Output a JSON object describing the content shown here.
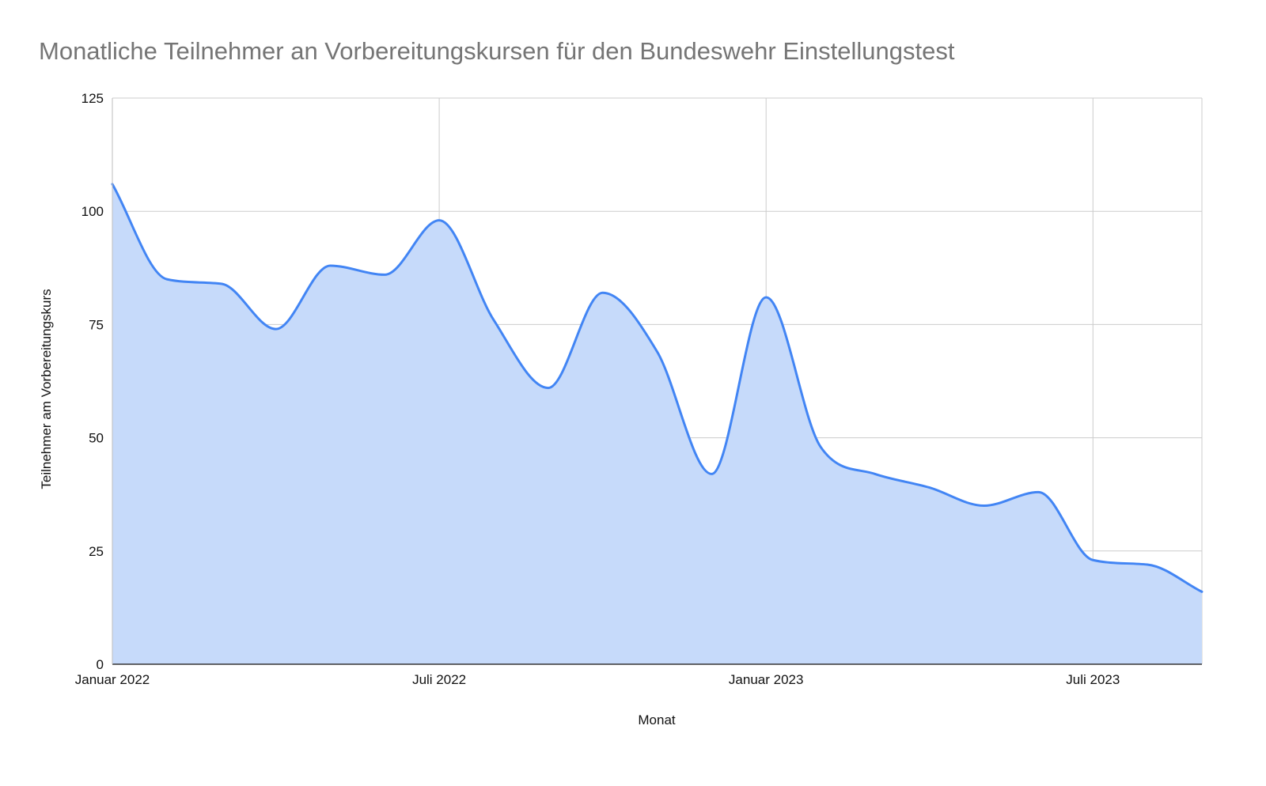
{
  "chart_data": {
    "type": "area",
    "title": "Monatliche Teilnehmer an Vorbereitungskursen für den Bundeswehr Einstellungstest",
    "xlabel": "Monat",
    "ylabel": "Teilnehmer am Vorbereitungskurs",
    "ylim": [
      0,
      125
    ],
    "yticks": [
      "0",
      "25",
      "50",
      "75",
      "100",
      "125"
    ],
    "xticks": [
      {
        "label": "Januar 2022",
        "index": 0
      },
      {
        "label": "Juli 2022",
        "index": 6
      },
      {
        "label": "Januar 2023",
        "index": 12
      },
      {
        "label": "Juli 2023",
        "index": 18
      }
    ],
    "grid": true,
    "legend": "none",
    "line_color": "#4285f4",
    "fill_color": "#c6dafa",
    "categories": [
      "2022-01",
      "2022-02",
      "2022-03",
      "2022-04",
      "2022-05",
      "2022-06",
      "2022-07",
      "2022-08",
      "2022-09",
      "2022-10",
      "2022-11",
      "2022-12",
      "2023-01",
      "2023-02",
      "2023-03",
      "2023-04",
      "2023-05",
      "2023-06",
      "2023-07",
      "2023-08",
      "2023-09"
    ],
    "series": [
      {
        "values": [
          106,
          85,
          84,
          74,
          88,
          86,
          98,
          76,
          61,
          82,
          69,
          42,
          81,
          48,
          42,
          39,
          35,
          38,
          23,
          22,
          16
        ]
      }
    ]
  }
}
